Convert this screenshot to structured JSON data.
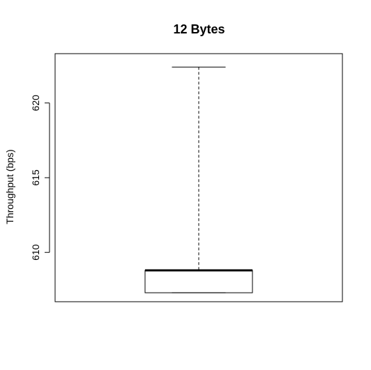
{
  "chart_data": {
    "type": "box",
    "title": "12 Bytes",
    "xlabel": "",
    "ylabel": "Throughput (bps)",
    "ylim": [
      606.7,
      623.3
    ],
    "yticks": [
      610,
      615,
      620
    ],
    "ytick_labels": [
      "610",
      "615",
      "620"
    ],
    "grid": false,
    "series": [
      {
        "min": 607.3,
        "q1": 607.3,
        "median": 608.8,
        "q3": 608.8,
        "max": 622.4
      }
    ]
  }
}
